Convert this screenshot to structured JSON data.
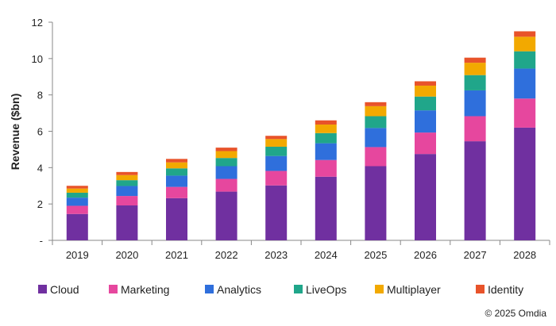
{
  "chart_data": {
    "type": "bar",
    "stacked": true,
    "ylabel": "Revenue ($bn)",
    "ylim": [
      0,
      12
    ],
    "yticks": [
      {
        "value": 0,
        "label": "-"
      },
      {
        "value": 2,
        "label": "2"
      },
      {
        "value": 4,
        "label": "4"
      },
      {
        "value": 6,
        "label": "6"
      },
      {
        "value": 8,
        "label": "8"
      },
      {
        "value": 10,
        "label": "10"
      },
      {
        "value": 12,
        "label": "12"
      }
    ],
    "categories": [
      "2019",
      "2020",
      "2021",
      "2022",
      "2023",
      "2024",
      "2025",
      "2026",
      "2027",
      "2028"
    ],
    "series": [
      {
        "name": "Cloud",
        "color": "#7030a0",
        "values": [
          1.45,
          1.92,
          2.32,
          2.68,
          3.02,
          3.5,
          4.08,
          4.75,
          5.45,
          6.2
        ]
      },
      {
        "name": "Marketing",
        "color": "#e6479e",
        "values": [
          0.45,
          0.52,
          0.62,
          0.7,
          0.8,
          0.92,
          1.05,
          1.18,
          1.38,
          1.6
        ]
      },
      {
        "name": "Analytics",
        "color": "#2f6fdc",
        "values": [
          0.45,
          0.55,
          0.62,
          0.7,
          0.82,
          0.92,
          1.05,
          1.22,
          1.42,
          1.65
        ]
      },
      {
        "name": "LiveOps",
        "color": "#20a68a",
        "values": [
          0.27,
          0.32,
          0.4,
          0.45,
          0.51,
          0.56,
          0.65,
          0.76,
          0.84,
          0.95
        ]
      },
      {
        "name": "Multiplayer",
        "color": "#f2a900",
        "values": [
          0.23,
          0.28,
          0.33,
          0.38,
          0.42,
          0.47,
          0.55,
          0.6,
          0.68,
          0.8
        ]
      },
      {
        "name": "Identity",
        "color": "#e8532a",
        "values": [
          0.15,
          0.17,
          0.19,
          0.19,
          0.18,
          0.23,
          0.22,
          0.24,
          0.28,
          0.3
        ]
      }
    ],
    "grid": false,
    "legend": "bottom"
  },
  "copyright": "© 2025 Omdia"
}
